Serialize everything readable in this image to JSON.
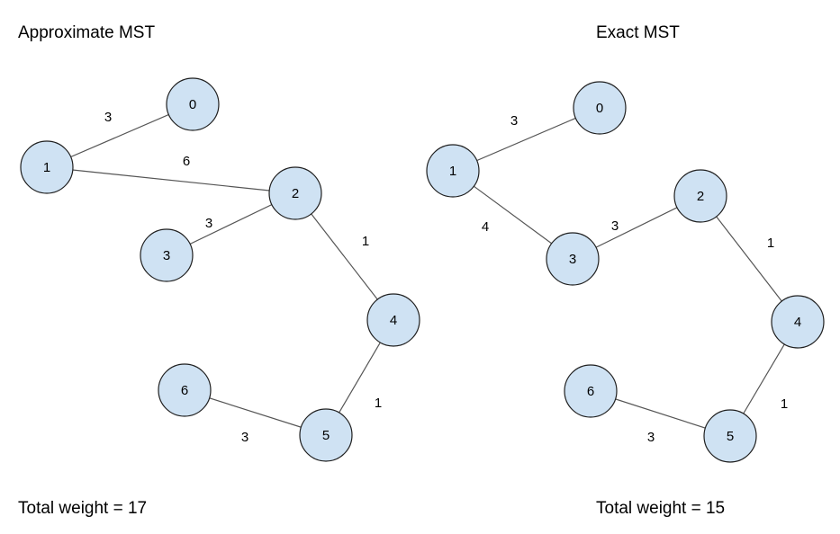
{
  "colors": {
    "node_fill": "#cfe2f3",
    "node_stroke": "#1f1f1f",
    "edge": "#555555"
  },
  "approx": {
    "title": "Approximate MST",
    "total": "Total weight = 17",
    "nodes": [
      {
        "id": "0",
        "label": "0"
      },
      {
        "id": "1",
        "label": "1"
      },
      {
        "id": "2",
        "label": "2"
      },
      {
        "id": "3",
        "label": "3"
      },
      {
        "id": "4",
        "label": "4"
      },
      {
        "id": "5",
        "label": "5"
      },
      {
        "id": "6",
        "label": "6"
      }
    ],
    "edges": [
      {
        "from": "1",
        "to": "0",
        "weight": "3"
      },
      {
        "from": "1",
        "to": "2",
        "weight": "6"
      },
      {
        "from": "3",
        "to": "2",
        "weight": "3"
      },
      {
        "from": "2",
        "to": "4",
        "weight": "1"
      },
      {
        "from": "4",
        "to": "5",
        "weight": "1"
      },
      {
        "from": "6",
        "to": "5",
        "weight": "3"
      }
    ]
  },
  "exact": {
    "title": "Exact MST",
    "total": "Total weight = 15",
    "nodes": [
      {
        "id": "0",
        "label": "0"
      },
      {
        "id": "1",
        "label": "1"
      },
      {
        "id": "2",
        "label": "2"
      },
      {
        "id": "3",
        "label": "3"
      },
      {
        "id": "4",
        "label": "4"
      },
      {
        "id": "5",
        "label": "5"
      },
      {
        "id": "6",
        "label": "6"
      }
    ],
    "edges": [
      {
        "from": "1",
        "to": "0",
        "weight": "3"
      },
      {
        "from": "1",
        "to": "3",
        "weight": "4"
      },
      {
        "from": "3",
        "to": "2",
        "weight": "3"
      },
      {
        "from": "2",
        "to": "4",
        "weight": "1"
      },
      {
        "from": "4",
        "to": "5",
        "weight": "1"
      },
      {
        "from": "6",
        "to": "5",
        "weight": "3"
      }
    ]
  }
}
